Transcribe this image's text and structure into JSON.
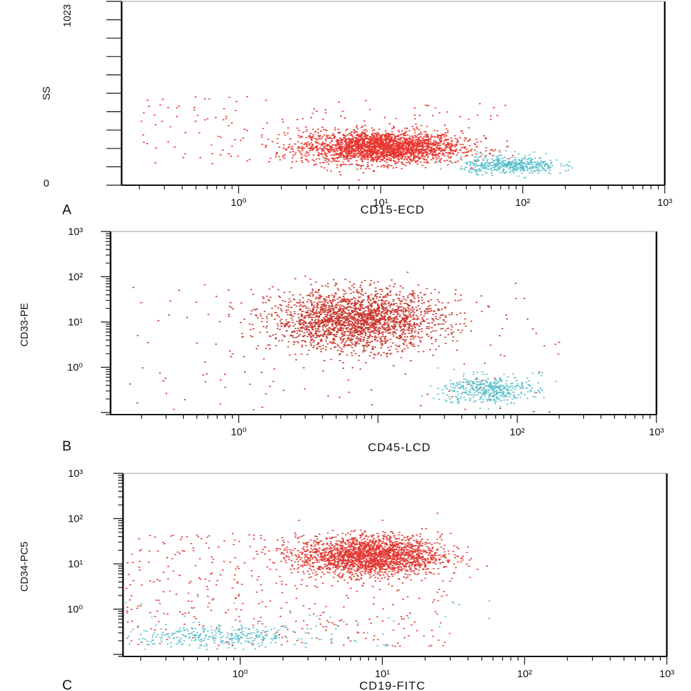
{
  "chart_data": [
    {
      "type": "scatter",
      "panel_label": "A",
      "xlabel": "CD15-ECD",
      "ylabel": "SS",
      "x_scale": "log",
      "y_scale": "linear",
      "xlim": [
        0.15,
        1000
      ],
      "ylim": [
        0,
        1023
      ],
      "x_ticks": [
        {
          "value": 1,
          "label": "10⁰"
        },
        {
          "value": 10,
          "label": "10¹"
        },
        {
          "value": 100,
          "label": "10²"
        },
        {
          "value": 1000,
          "label": "10³"
        }
      ],
      "y_ticks": [
        {
          "value": 0,
          "label": "0"
        },
        {
          "value": 1023,
          "label": "1023"
        }
      ],
      "series": [
        {
          "color": "#e8352e",
          "cluster": {
            "x_center": 10,
            "x_log_spread": 0.28,
            "y_center": 210,
            "y_spread": 45,
            "count": 2400
          },
          "sparse": {
            "x_range": [
              0.2,
              80
            ],
            "y_range": [
              80,
              500
            ],
            "count": 160
          }
        },
        {
          "color": "#5bc0cc",
          "cluster": {
            "x_center": 80,
            "x_log_spread": 0.17,
            "y_center": 110,
            "y_spread": 22,
            "count": 420
          },
          "sparse": {
            "x_range": [
              40,
              200
            ],
            "y_range": [
              60,
              200
            ],
            "count": 40
          }
        }
      ]
    },
    {
      "type": "scatter",
      "panel_label": "B",
      "xlabel": "CD45-LCD",
      "ylabel": "CD33-PE",
      "x_scale": "log",
      "y_scale": "log",
      "xlim": [
        0.12,
        1000
      ],
      "ylim": [
        0.09,
        1000
      ],
      "x_ticks": [
        {
          "value": 1,
          "label": "10⁰"
        },
        {
          "value": 100,
          "label": "10²"
        },
        {
          "value": 1000,
          "label": "10³"
        }
      ],
      "y_ticks": [
        {
          "value": 1,
          "label": "10⁰"
        },
        {
          "value": 10,
          "label": "10¹"
        },
        {
          "value": 100,
          "label": "10²"
        },
        {
          "value": 1000,
          "label": "10³"
        }
      ],
      "series": [
        {
          "color": "#c8382f",
          "cluster": {
            "x_center": 7,
            "x_log_spread": 0.3,
            "y_center": 11,
            "y_log_spread": 0.32,
            "count": 2300
          },
          "sparse": {
            "x_range": [
              0.15,
              200
            ],
            "y_range": [
              0.1,
              90
            ],
            "count": 150
          }
        },
        {
          "color": "#5bc0cc",
          "cluster": {
            "x_center": 60,
            "x_log_spread": 0.15,
            "y_center": 0.32,
            "y_log_spread": 0.15,
            "count": 380
          },
          "sparse": {
            "x_range": [
              30,
              150
            ],
            "y_range": [
              0.15,
              0.8
            ],
            "count": 40
          }
        }
      ]
    },
    {
      "type": "scatter",
      "panel_label": "C",
      "xlabel": "CD19-FITC",
      "ylabel": "CD34-PC5",
      "x_scale": "log",
      "y_scale": "log",
      "xlim": [
        0.15,
        1000
      ],
      "ylim": [
        0.09,
        1000
      ],
      "x_ticks": [
        {
          "value": 1,
          "label": "10⁰"
        },
        {
          "value": 10,
          "label": "10¹"
        },
        {
          "value": 100,
          "label": "10²"
        },
        {
          "value": 1000,
          "label": "10³"
        }
      ],
      "y_ticks": [
        {
          "value": 1,
          "label": "10⁰"
        },
        {
          "value": 10,
          "label": "10¹"
        },
        {
          "value": 100,
          "label": "10²"
        },
        {
          "value": 1000,
          "label": "10³"
        }
      ],
      "series": [
        {
          "color": "#e23a33",
          "cluster": {
            "x_center": 8,
            "x_log_spread": 0.25,
            "y_center": 15,
            "y_log_spread": 0.22,
            "count": 2200
          },
          "sparse": {
            "x_range": [
              0.15,
              30
            ],
            "y_range": [
              0.15,
              50
            ],
            "count": 420
          }
        },
        {
          "color": "#5bc0cc",
          "cluster": {
            "x_center": 0.7,
            "x_log_spread": 0.35,
            "y_center": 0.25,
            "y_log_spread": 0.12,
            "count": 320
          },
          "sparse": {
            "x_range": [
              0.15,
              60
            ],
            "y_range": [
              0.15,
              2
            ],
            "count": 40
          }
        }
      ]
    }
  ]
}
